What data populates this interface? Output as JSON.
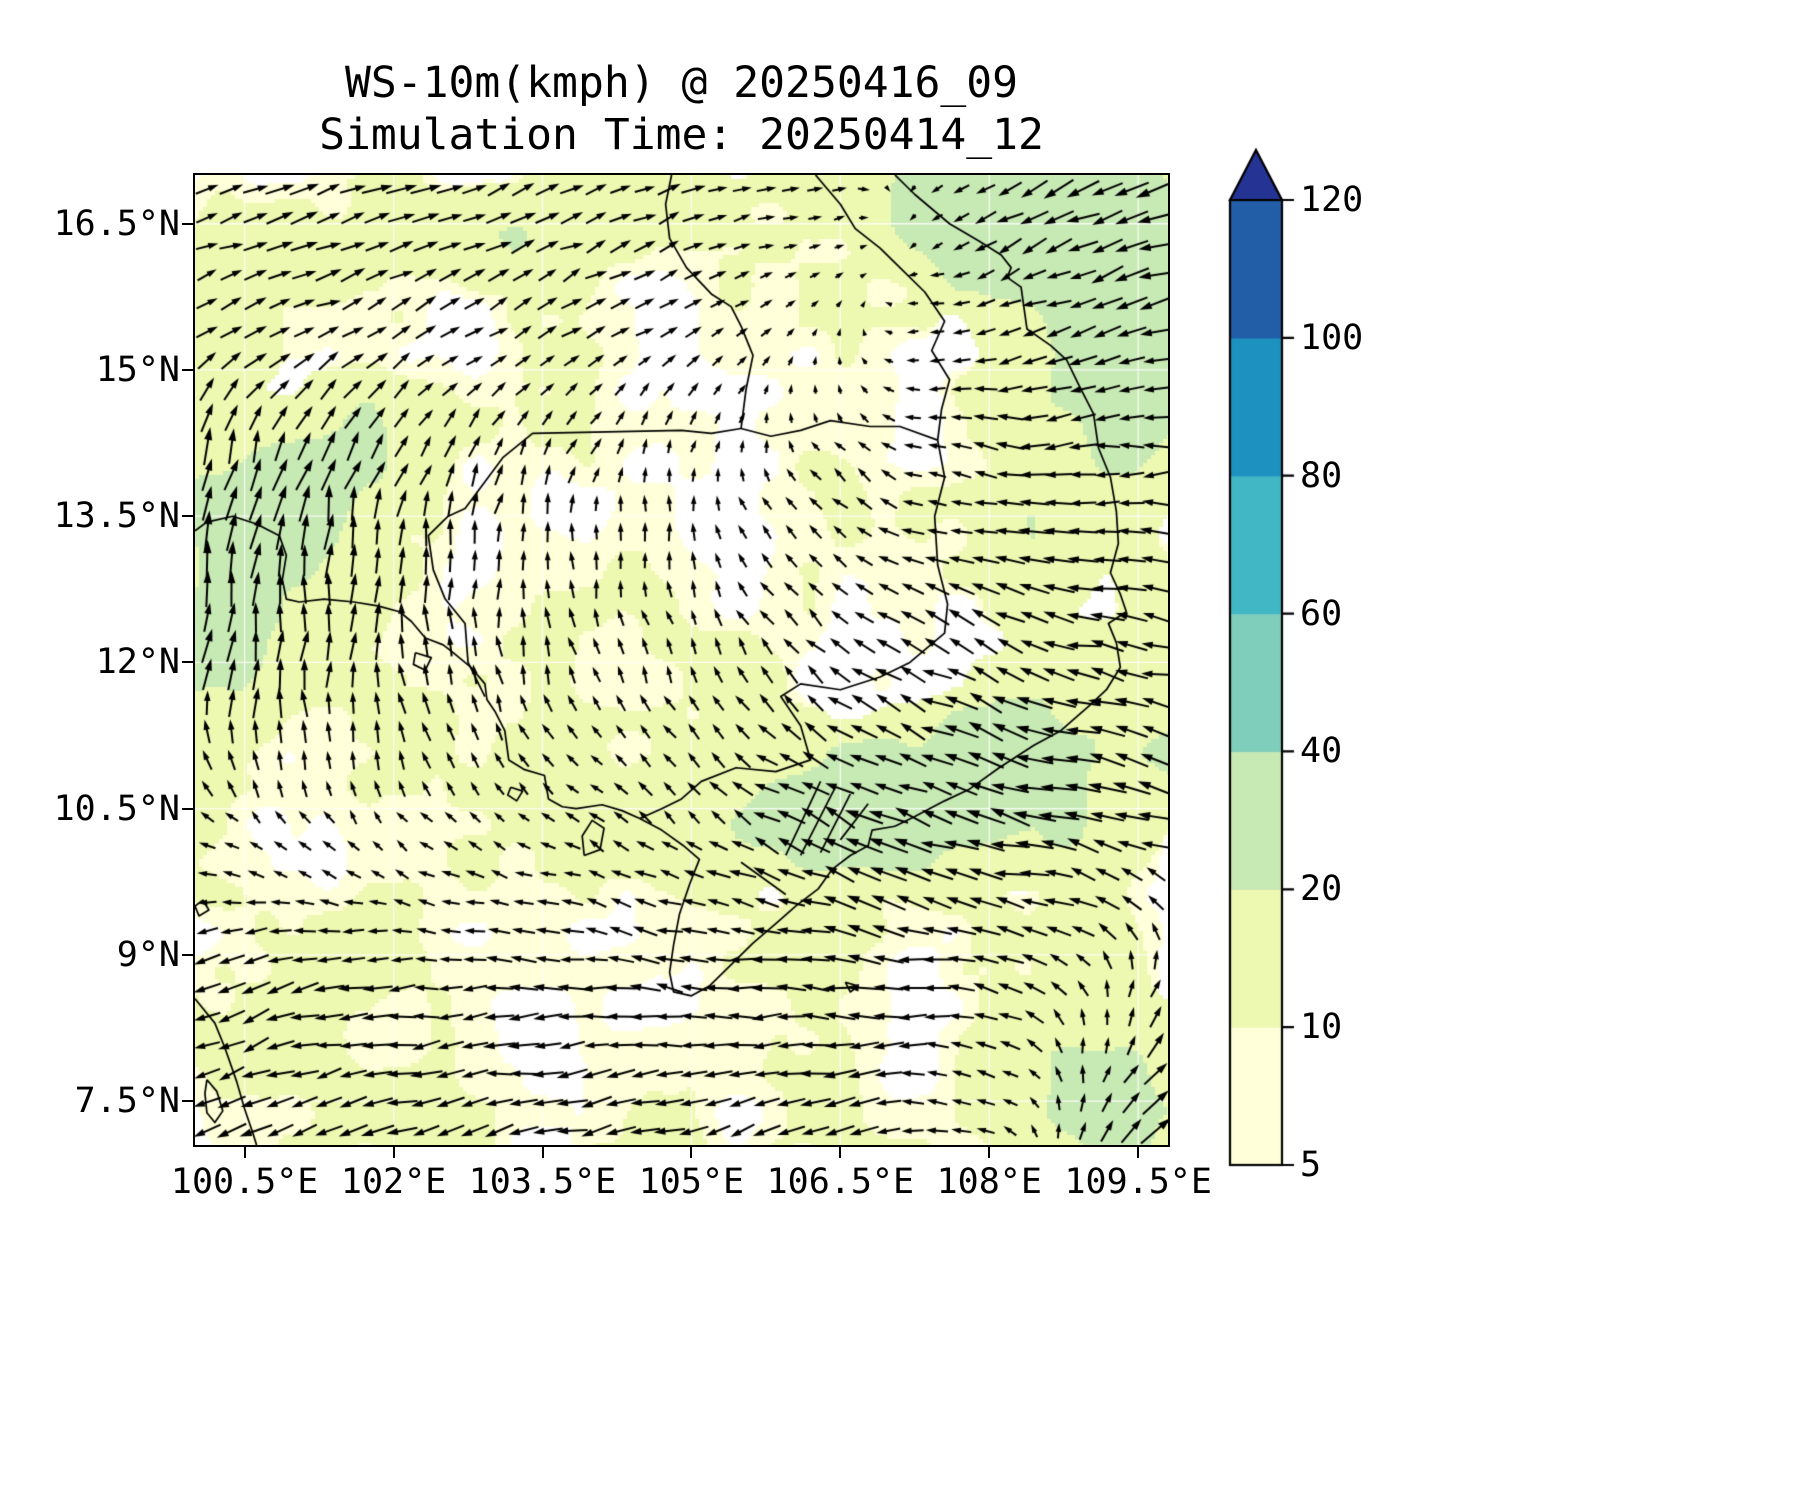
{
  "title": {
    "line1": "WS-10m(kmph) @ 20250416_09",
    "line2": "Simulation Time: 20250414_12"
  },
  "chart_data": {
    "type": "quiver_map",
    "title": "WS-10m(kmph) @ 20250416_09",
    "subtitle": "Simulation Time: 20250414_12",
    "unit": "kmph",
    "lon_range": [
      100.0,
      109.8
    ],
    "lat_range": [
      7.05,
      17.0
    ],
    "x_ticks": {
      "values": [
        100.5,
        102,
        103.5,
        105,
        106.5,
        108,
        109.5
      ],
      "labels": [
        "100.5°E",
        "102°E",
        "103.5°E",
        "105°E",
        "106.5°E",
        "108°E",
        "109.5°E"
      ]
    },
    "y_ticks": {
      "values": [
        16.5,
        15,
        13.5,
        12,
        10.5,
        9,
        7.5
      ],
      "labels": [
        "16.5°N",
        "15°N",
        "13.5°N",
        "12°N",
        "10.5°N",
        "9°N",
        "7.5°N"
      ]
    },
    "colorbar": {
      "levels": [
        5,
        10,
        20,
        40,
        60,
        80,
        100,
        120
      ],
      "colors": [
        "#ffffd9",
        "#edf8b1",
        "#c7e9b4",
        "#7fcdbb",
        "#41b6c4",
        "#1d91c0",
        "#225ea8"
      ],
      "extend_color": "#253494",
      "extend": "max"
    },
    "shading": {
      "base": "#ffffd9",
      "light": "#edf8b1",
      "green": "#c7e9b4",
      "white": "#ffffff",
      "patches": [
        [
          108.9,
          16.2,
          1.3,
          1.2,
          1.2
        ],
        [
          109.5,
          14.9,
          0.7,
          1.3,
          1.0
        ],
        [
          108.2,
          16.8,
          1.5,
          0.6,
          1.0
        ],
        [
          100.8,
          13.5,
          1.0,
          1.3,
          1.1
        ],
        [
          100.4,
          12.2,
          0.5,
          0.9,
          0.7
        ],
        [
          101.8,
          14.1,
          0.7,
          0.6,
          0.5
        ],
        [
          106.9,
          10.6,
          1.7,
          0.75,
          1.0
        ],
        [
          108.4,
          10.9,
          1.4,
          0.95,
          0.95
        ],
        [
          105.8,
          10.15,
          0.9,
          0.5,
          0.6
        ],
        [
          109.3,
          7.55,
          1.05,
          0.95,
          1.1
        ],
        [
          103.0,
          16.4,
          1.0,
          0.55,
          0.55
        ],
        [
          108.6,
          13.0,
          0.8,
          0.8,
          0.5
        ],
        [
          104.9,
          16.85,
          0.8,
          0.4,
          0.45
        ]
      ]
    },
    "wind_field": {
      "units": "kmph",
      "arrow_color": "#000000",
      "grid_nx": 40,
      "grid_ny": 34,
      "lons": [
        100,
        101.667,
        103.333,
        105,
        106.667,
        108.333,
        110
      ],
      "lats": [
        7,
        8.667,
        10.333,
        12,
        13.667,
        15.333,
        17
      ],
      "u": [
        [
          -8,
          -9,
          -9,
          -8,
          -8,
          -2,
          11
        ],
        [
          -7,
          -8,
          -8,
          -8,
          -9,
          -6,
          4
        ],
        [
          -3,
          -2,
          -3,
          -4,
          -10,
          -12,
          -10
        ],
        [
          1,
          0,
          -1,
          -2,
          -5,
          -9,
          -9
        ],
        [
          2,
          2,
          1,
          0,
          -4,
          -8,
          -8
        ],
        [
          6,
          6,
          5,
          4,
          0,
          -7,
          -9
        ],
        [
          7,
          8,
          7,
          6,
          3,
          -8,
          -12
        ]
      ],
      "v": [
        [
          -4,
          -3,
          -2,
          -2,
          -3,
          3,
          9
        ],
        [
          -3,
          -1,
          0,
          1,
          0,
          2,
          6
        ],
        [
          2,
          3,
          2,
          3,
          4,
          3,
          2
        ],
        [
          10,
          8,
          5,
          4,
          4,
          3,
          2
        ],
        [
          12,
          9,
          5,
          4,
          3,
          1,
          0
        ],
        [
          4,
          3,
          3,
          2,
          1,
          -2,
          -2
        ],
        [
          2,
          2,
          3,
          2,
          0,
          -4,
          -5
        ]
      ]
    },
    "map_lines": [
      [
        [
          107.05,
          17.0
        ],
        [
          107.25,
          16.8
        ],
        [
          107.6,
          16.5
        ],
        [
          107.9,
          16.32
        ],
        [
          108.12,
          16.18
        ],
        [
          108.22,
          16.05
        ],
        [
          108.18,
          15.95
        ],
        [
          108.32,
          15.85
        ],
        [
          108.38,
          15.42
        ],
        [
          108.62,
          15.25
        ],
        [
          108.78,
          15.1
        ],
        [
          108.9,
          14.85
        ],
        [
          109.05,
          14.55
        ],
        [
          109.1,
          14.2
        ],
        [
          109.22,
          13.9
        ],
        [
          109.28,
          13.55
        ],
        [
          109.3,
          13.22
        ],
        [
          109.22,
          12.92
        ],
        [
          109.32,
          12.7
        ],
        [
          109.38,
          12.52
        ],
        [
          109.2,
          12.4
        ],
        [
          109.28,
          12.2
        ],
        [
          109.32,
          11.95
        ],
        [
          109.18,
          11.72
        ],
        [
          109.0,
          11.55
        ],
        [
          108.72,
          11.3
        ],
        [
          108.45,
          11.15
        ],
        [
          108.1,
          10.92
        ],
        [
          107.8,
          10.7
        ],
        [
          107.55,
          10.58
        ],
        [
          107.25,
          10.42
        ],
        [
          107.05,
          10.32
        ]
      ],
      [
        [
          107.05,
          10.32
        ],
        [
          106.82,
          10.28
        ],
        [
          106.78,
          10.12
        ],
        [
          106.6,
          10.02
        ],
        [
          106.42,
          9.88
        ],
        [
          106.28,
          9.68
        ],
        [
          106.05,
          9.5
        ],
        [
          105.85,
          9.32
        ],
        [
          105.62,
          9.12
        ],
        [
          105.38,
          8.88
        ],
        [
          105.18,
          8.68
        ],
        [
          105.0,
          8.58
        ],
        [
          104.82,
          8.62
        ],
        [
          104.78,
          8.82
        ],
        [
          104.82,
          9.1
        ],
        [
          104.88,
          9.42
        ],
        [
          104.98,
          9.72
        ],
        [
          105.08,
          9.98
        ],
        [
          104.92,
          10.12
        ],
        [
          104.7,
          10.28
        ],
        [
          104.48,
          10.4
        ]
      ],
      [
        [
          104.48,
          10.4
        ],
        [
          104.3,
          10.48
        ],
        [
          104.1,
          10.54
        ],
        [
          103.84,
          10.5
        ],
        [
          103.7,
          10.52
        ],
        [
          103.56,
          10.6
        ],
        [
          103.52,
          10.84
        ],
        [
          103.32,
          10.9
        ],
        [
          103.16,
          11.0
        ],
        [
          103.12,
          11.3
        ],
        [
          103.02,
          11.5
        ],
        [
          102.94,
          11.62
        ],
        [
          102.92,
          11.78
        ],
        [
          102.78,
          11.95
        ],
        [
          102.6,
          12.1
        ],
        [
          102.5,
          12.18
        ],
        [
          102.32,
          12.25
        ],
        [
          102.18,
          12.42
        ],
        [
          102.06,
          12.52
        ],
        [
          101.84,
          12.58
        ],
        [
          101.6,
          12.62
        ],
        [
          101.3,
          12.65
        ],
        [
          101.05,
          12.62
        ],
        [
          100.92,
          12.65
        ],
        [
          100.88,
          12.85
        ],
        [
          100.92,
          13.1
        ],
        [
          100.85,
          13.3
        ],
        [
          100.62,
          13.42
        ],
        [
          100.38,
          13.5
        ],
        [
          100.12,
          13.44
        ],
        [
          100.0,
          13.35
        ]
      ],
      [
        [
          100.0,
          8.55
        ],
        [
          100.2,
          8.3
        ],
        [
          100.3,
          8.05
        ],
        [
          100.42,
          7.7
        ],
        [
          100.5,
          7.42
        ],
        [
          100.58,
          7.18
        ],
        [
          100.62,
          7.05
        ]
      ],
      [
        [
          100.12,
          7.72
        ],
        [
          100.22,
          7.6
        ],
        [
          100.28,
          7.4
        ],
        [
          100.2,
          7.28
        ],
        [
          100.12,
          7.38
        ],
        [
          100.1,
          7.58
        ],
        [
          100.12,
          7.72
        ]
      ],
      [
        [
          103.92,
          10.02
        ],
        [
          104.08,
          10.08
        ],
        [
          104.12,
          10.3
        ],
        [
          104.0,
          10.38
        ],
        [
          103.9,
          10.22
        ],
        [
          103.92,
          10.02
        ]
      ],
      [
        [
          102.22,
          12.1
        ],
        [
          102.38,
          12.05
        ],
        [
          102.32,
          11.92
        ],
        [
          102.2,
          11.98
        ],
        [
          102.22,
          12.1
        ]
      ],
      [
        [
          103.18,
          10.72
        ],
        [
          103.3,
          10.68
        ],
        [
          103.24,
          10.58
        ],
        [
          103.15,
          10.64
        ],
        [
          103.18,
          10.72
        ]
      ],
      [
        [
          106.55,
          8.72
        ],
        [
          106.68,
          8.68
        ],
        [
          106.6,
          8.62
        ],
        [
          106.55,
          8.72
        ]
      ],
      [
        [
          100.0,
          9.5
        ],
        [
          100.08,
          9.56
        ],
        [
          100.14,
          9.46
        ],
        [
          100.04,
          9.4
        ],
        [
          100.0,
          9.5
        ]
      ],
      [
        [
          102.92,
          11.65
        ],
        [
          102.75,
          12.0
        ],
        [
          102.72,
          12.4
        ],
        [
          102.52,
          12.65
        ],
        [
          102.4,
          12.95
        ],
        [
          102.35,
          13.3
        ],
        [
          102.55,
          13.5
        ],
        [
          102.72,
          13.58
        ],
        [
          103.1,
          14.1
        ],
        [
          103.4,
          14.35
        ],
        [
          103.9,
          14.36
        ],
        [
          104.4,
          14.37
        ],
        [
          104.9,
          14.38
        ],
        [
          105.2,
          14.35
        ],
        [
          105.5,
          14.4
        ]
      ],
      [
        [
          105.5,
          14.4
        ],
        [
          105.8,
          14.32
        ],
        [
          106.1,
          14.38
        ],
        [
          106.4,
          14.48
        ],
        [
          106.8,
          14.42
        ],
        [
          107.1,
          14.42
        ],
        [
          107.48,
          14.28
        ]
      ],
      [
        [
          107.48,
          14.28
        ],
        [
          107.55,
          13.9
        ],
        [
          107.45,
          13.5
        ],
        [
          107.48,
          13.0
        ],
        [
          107.58,
          12.6
        ],
        [
          107.55,
          12.3
        ],
        [
          107.2,
          12.0
        ],
        [
          106.9,
          11.85
        ],
        [
          106.5,
          11.72
        ],
        [
          106.1,
          11.78
        ],
        [
          105.9,
          11.65
        ],
        [
          106.1,
          11.35
        ],
        [
          106.2,
          11.0
        ],
        [
          105.85,
          10.88
        ],
        [
          105.45,
          10.92
        ],
        [
          105.1,
          10.78
        ],
        [
          104.9,
          10.6
        ],
        [
          104.7,
          10.5
        ],
        [
          104.48,
          10.4
        ]
      ],
      [
        [
          105.5,
          14.4
        ],
        [
          105.55,
          14.8
        ],
        [
          105.62,
          15.15
        ],
        [
          105.5,
          15.45
        ],
        [
          105.4,
          15.65
        ],
        [
          105.2,
          15.78
        ],
        [
          104.95,
          16.05
        ],
        [
          104.78,
          16.35
        ],
        [
          104.74,
          16.7
        ],
        [
          104.8,
          17.0
        ]
      ],
      [
        [
          106.25,
          17.0
        ],
        [
          106.5,
          16.7
        ],
        [
          106.65,
          16.45
        ],
        [
          106.9,
          16.25
        ],
        [
          107.1,
          16.05
        ],
        [
          107.35,
          15.8
        ],
        [
          107.55,
          15.5
        ],
        [
          107.42,
          15.2
        ],
        [
          107.6,
          14.9
        ],
        [
          107.52,
          14.6
        ],
        [
          107.48,
          14.28
        ]
      ],
      [
        [
          106.3,
          10.78
        ],
        [
          105.95,
          10.02
        ]
      ],
      [
        [
          106.45,
          10.72
        ],
        [
          106.1,
          10.02
        ]
      ],
      [
        [
          106.6,
          10.65
        ],
        [
          106.3,
          10.05
        ]
      ],
      [
        [
          106.78,
          10.55
        ],
        [
          106.5,
          10.18
        ]
      ],
      [
        [
          105.5,
          9.95
        ],
        [
          105.95,
          9.62
        ]
      ]
    ]
  }
}
